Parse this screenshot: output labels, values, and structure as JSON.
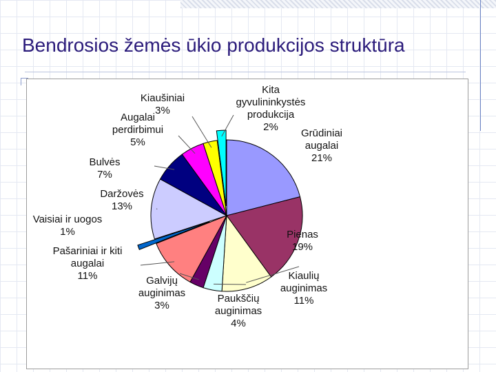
{
  "slide": {
    "title": "Bendrosios žemės ūkio produkcijos struktūra"
  },
  "chart_data": {
    "type": "pie",
    "title": "",
    "legend": "none",
    "slices": [
      {
        "name": "Grūdiniai augalai",
        "value": 21,
        "label": "21%",
        "color": "#9999ff",
        "lines": [
          "Grūdiniai",
          "augalai",
          "21%"
        ],
        "exploded": false
      },
      {
        "name": "Pienas",
        "value": 19,
        "label": "19%",
        "color": "#993366",
        "lines": [
          "Pienas",
          "19%"
        ],
        "exploded": false
      },
      {
        "name": "Kiaulių auginimas",
        "value": 11,
        "label": "11%",
        "color": "#ffffcc",
        "lines": [
          "Kiaulių",
          "auginimas",
          "11%"
        ],
        "exploded": false
      },
      {
        "name": "Paukščių auginimas",
        "value": 4,
        "label": "4%",
        "color": "#ccffff",
        "lines": [
          "Paukščių",
          "auginimas",
          "4%"
        ],
        "exploded": false
      },
      {
        "name": "Galvijų auginimas",
        "value": 3,
        "label": "3%",
        "color": "#660066",
        "lines": [
          "Galvijų",
          "auginimas",
          "3%"
        ],
        "exploded": false
      },
      {
        "name": "Pašariniai ir kiti augalai",
        "value": 11,
        "label": "11%",
        "color": "#ff8080",
        "lines": [
          "Pašariniai ir kiti",
          "augalai",
          "11%"
        ],
        "exploded": false
      },
      {
        "name": "Vaisiai ir uogos",
        "value": 1,
        "label": "1%",
        "color": "#0066cc",
        "lines": [
          "Vaisiai ir uogos",
          "1%"
        ],
        "exploded": true
      },
      {
        "name": "Daržovės",
        "value": 13,
        "label": "13%",
        "color": "#ccccff",
        "lines": [
          "Daržovės",
          "13%"
        ],
        "exploded": false
      },
      {
        "name": "Bulvės",
        "value": 7,
        "label": "7%",
        "color": "#000080",
        "lines": [
          "Bulvės",
          "7%"
        ],
        "exploded": false
      },
      {
        "name": "Augalai perdirbimui",
        "value": 5,
        "label": "5%",
        "color": "#ff00ff",
        "lines": [
          "Augalai",
          "perdirbimui",
          "5%"
        ],
        "exploded": false
      },
      {
        "name": "Kiaušiniai",
        "value": 3,
        "label": "3%",
        "color": "#ffff00",
        "lines": [
          "Kiaušiniai",
          "3%"
        ],
        "exploded": false
      },
      {
        "name": "Kita gyvulininkystės produkcija",
        "value": 2,
        "label": "2%",
        "color": "#00ffff",
        "lines": [
          "Kita",
          "gyvulininkystės",
          "produkcija",
          "2%"
        ],
        "exploded": true
      }
    ]
  }
}
